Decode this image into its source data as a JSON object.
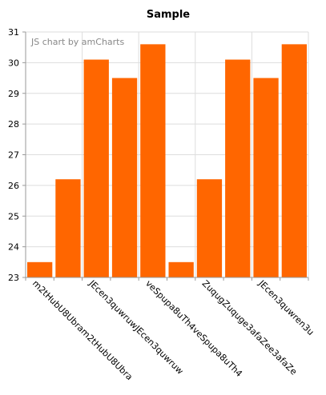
{
  "chart_data": {
    "type": "bar",
    "title": "Sample",
    "credit": "JS chart by amCharts",
    "categories": [
      "m2tHubU8Ubra",
      "m2tHubU8Ubra",
      "JEcen3quwruw",
      "JEcen3quwruw",
      "veSpupa8uTh4",
      "veSpupa8uTh4",
      "ZuqugZuquge3afaZe",
      "Zuquge3afaZe",
      "JEcen3quwren3u",
      "JEcen3quwren3u"
    ],
    "x_tick_labels": [
      "m2tHubU8Ubram2tHubU8Ubra",
      "JEcen3quwruwJEcen3quwruw",
      "veSpupa8uTh4veSpupa8uTh4",
      "ZuqugZuquge3afaZee3afaZe",
      "JEcen3quwren3u"
    ],
    "series": [
      {
        "values": [
          23.5,
          26.2,
          30.1,
          29.5,
          30.6,
          23.5,
          26.2,
          30.1,
          29.5,
          30.6
        ],
        "color": "#FF6600"
      }
    ],
    "ylim": [
      23,
      31
    ],
    "yticks": [
      "23",
      "24",
      "25",
      "26",
      "27",
      "28",
      "29",
      "30",
      "31"
    ],
    "xlabel": "",
    "ylabel": "",
    "grid": true,
    "legend": "none"
  }
}
